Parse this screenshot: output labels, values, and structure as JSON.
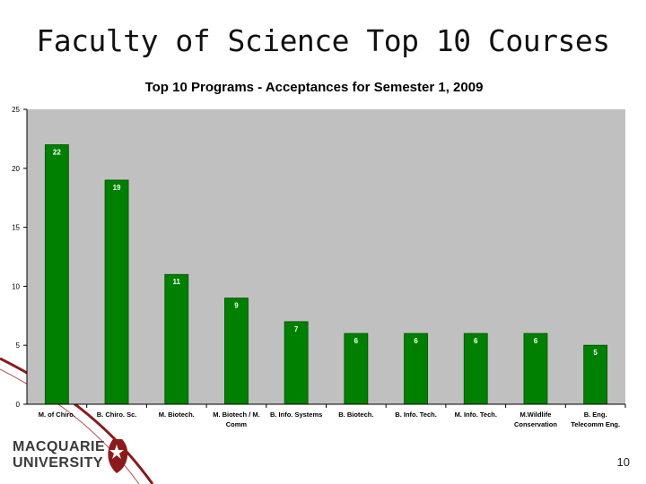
{
  "slide": {
    "title": "Faculty of Science Top 10 Courses",
    "page_number": "10",
    "logo_line1": "MACQUARIE",
    "logo_line2": "UNIVERSITY"
  },
  "colors": {
    "plot_background": "#c0c0c0",
    "bar": "#008000",
    "accent_red": "#8b1a1a"
  },
  "chart_data": {
    "type": "bar",
    "title": "Top 10 Programs - Acceptances for Semester 1, 2009",
    "categories": [
      [
        "M. of Chiro."
      ],
      [
        "B. Chiro. Sc."
      ],
      [
        "M. Biotech."
      ],
      [
        "M. Biotech / M.",
        "Comm"
      ],
      [
        "B. Info. Systems"
      ],
      [
        "B. Biotech."
      ],
      [
        "B. Info. Tech."
      ],
      [
        "M. Info. Tech."
      ],
      [
        "M.Wildlife",
        "Conservation"
      ],
      [
        "B. Eng.",
        "Telecomm Eng."
      ]
    ],
    "values": [
      22,
      19,
      11,
      9,
      7,
      6,
      6,
      6,
      6,
      5
    ],
    "ylim": [
      0,
      25
    ],
    "yticks": [
      0,
      5,
      10,
      15,
      20,
      25
    ],
    "grid": false,
    "legend": "none"
  }
}
